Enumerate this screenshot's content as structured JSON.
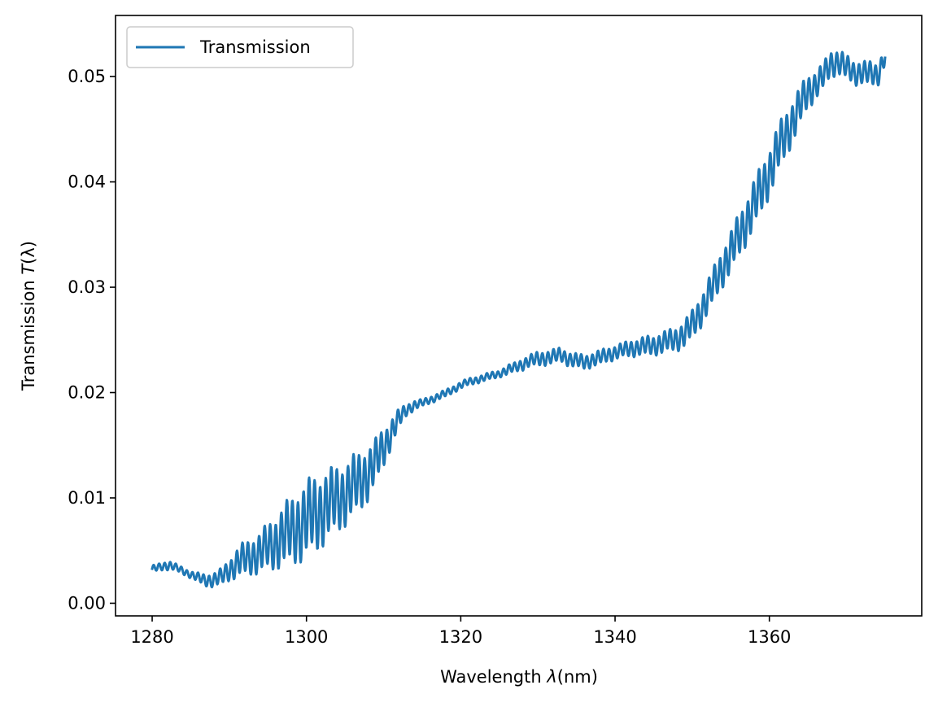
{
  "chart_data": {
    "type": "line",
    "title": "",
    "xlabel": {
      "prefix": "Wavelength ",
      "symbol": "λ",
      "suffix": "(nm)"
    },
    "ylabel": {
      "prefix": "Transmission ",
      "symbol": "T",
      "suffix": "(λ)"
    },
    "xlim": [
      1275.25,
      1379.75
    ],
    "ylim": [
      -0.0012,
      0.0558
    ],
    "xticks": [
      1280,
      1300,
      1320,
      1340,
      1360
    ],
    "xtick_labels": [
      "1280",
      "1300",
      "1320",
      "1340",
      "1360"
    ],
    "yticks": [
      0.0,
      0.01,
      0.02,
      0.03,
      0.04,
      0.05
    ],
    "ytick_labels": [
      "0.00",
      "0.01",
      "0.02",
      "0.03",
      "0.04",
      "0.05"
    ],
    "grid": false,
    "legend": {
      "position": "upper-left"
    },
    "series": [
      {
        "name": "Transmission",
        "color": "#1f77b4",
        "x": [
          1280,
          1281,
          1282,
          1283,
          1284,
          1285,
          1286,
          1287,
          1288,
          1289,
          1290,
          1291,
          1292,
          1293,
          1294,
          1295,
          1296,
          1297,
          1298,
          1299,
          1300,
          1301,
          1302,
          1303,
          1304,
          1305,
          1306,
          1307,
          1308,
          1309,
          1310,
          1311,
          1312,
          1313,
          1314,
          1315,
          1316,
          1317,
          1318,
          1319,
          1320,
          1321,
          1322,
          1323,
          1324,
          1325,
          1326,
          1327,
          1328,
          1329,
          1330,
          1331,
          1332,
          1333,
          1334,
          1335,
          1336,
          1337,
          1338,
          1339,
          1340,
          1341,
          1342,
          1343,
          1344,
          1345,
          1346,
          1347,
          1348,
          1349,
          1350,
          1351,
          1352,
          1353,
          1354,
          1355,
          1356,
          1357,
          1358,
          1359,
          1360,
          1361,
          1362,
          1363,
          1364,
          1365,
          1366,
          1367,
          1368,
          1369,
          1370,
          1371,
          1372,
          1373,
          1374,
          1375
        ],
        "y": [
          0.0032,
          0.0035,
          0.0036,
          0.0034,
          0.0031,
          0.0027,
          0.0024,
          0.0022,
          0.0022,
          0.0025,
          0.0032,
          0.0038,
          0.0042,
          0.0045,
          0.0048,
          0.0053,
          0.0058,
          0.0064,
          0.0068,
          0.0074,
          0.0079,
          0.0084,
          0.0089,
          0.0094,
          0.0099,
          0.0104,
          0.011,
          0.0116,
          0.0124,
          0.0134,
          0.0148,
          0.0162,
          0.0175,
          0.0184,
          0.0188,
          0.019,
          0.0193,
          0.0196,
          0.0199,
          0.0203,
          0.0207,
          0.021,
          0.0212,
          0.0214,
          0.0216,
          0.0218,
          0.0221,
          0.0224,
          0.0227,
          0.023,
          0.0232,
          0.0233,
          0.0234,
          0.0236,
          0.0232,
          0.023,
          0.0229,
          0.0231,
          0.0233,
          0.0236,
          0.0238,
          0.024,
          0.0242,
          0.0243,
          0.0244,
          0.0245,
          0.0247,
          0.0249,
          0.0251,
          0.0256,
          0.0264,
          0.0276,
          0.029,
          0.0305,
          0.032,
          0.0333,
          0.0348,
          0.0363,
          0.0378,
          0.0393,
          0.041,
          0.0428,
          0.0443,
          0.0458,
          0.0472,
          0.0485,
          0.0493,
          0.05,
          0.0512,
          0.0515,
          0.0508,
          0.0503,
          0.0505,
          0.0502,
          0.0501,
          0.0521
        ],
        "ripple": [
          0.0003,
          0.0003,
          0.0004,
          0.0003,
          0.0003,
          0.0003,
          0.0004,
          0.0005,
          0.0006,
          0.0007,
          0.0009,
          0.0012,
          0.0014,
          0.0015,
          0.0017,
          0.0019,
          0.0022,
          0.0025,
          0.0027,
          0.003,
          0.0031,
          0.0031,
          0.003,
          0.0028,
          0.0027,
          0.0026,
          0.0025,
          0.0024,
          0.0022,
          0.0019,
          0.0016,
          0.0012,
          0.0008,
          0.0005,
          0.0004,
          0.0003,
          0.0003,
          0.0003,
          0.0003,
          0.0003,
          0.0003,
          0.0003,
          0.0003,
          0.0003,
          0.0003,
          0.0003,
          0.0004,
          0.0004,
          0.0005,
          0.0005,
          0.0006,
          0.0006,
          0.0006,
          0.0006,
          0.0006,
          0.0006,
          0.0006,
          0.0006,
          0.0006,
          0.0006,
          0.0006,
          0.0006,
          0.0007,
          0.0007,
          0.0008,
          0.0008,
          0.0009,
          0.0009,
          0.001,
          0.0011,
          0.0012,
          0.0013,
          0.0014,
          0.0015,
          0.0016,
          0.0017,
          0.0018,
          0.0019,
          0.002,
          0.002,
          0.002,
          0.002,
          0.0019,
          0.0018,
          0.0016,
          0.0014,
          0.0012,
          0.0011,
          0.0011,
          0.0011,
          0.001,
          0.001,
          0.001,
          0.001,
          0.001,
          0.0008
        ]
      }
    ]
  }
}
